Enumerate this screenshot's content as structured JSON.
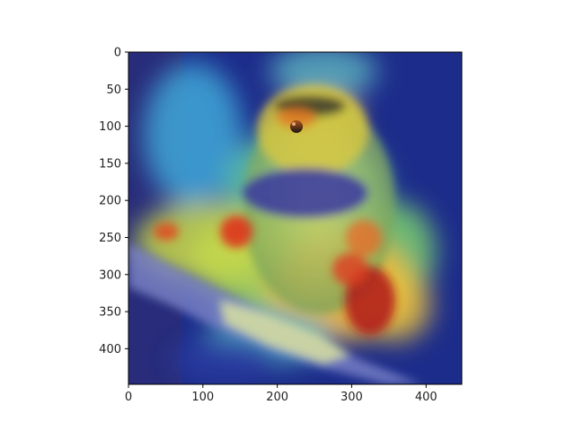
{
  "figure": {
    "subject": "small songbird perched on a branch",
    "overlay": "heatmap attention overlay",
    "palette": {
      "low": "#1a2a8a",
      "mid_low": "#3fa0d8",
      "mid": "#8ed86a",
      "mid_high": "#f2c23a",
      "high": "#d8261c",
      "axes": "#000000"
    }
  },
  "axes": {
    "xlim": [
      0,
      448
    ],
    "ylim": [
      448,
      0
    ],
    "x_ticks": [
      {
        "value": 0,
        "label": "0"
      },
      {
        "value": 100,
        "label": "100"
      },
      {
        "value": 200,
        "label": "200"
      },
      {
        "value": 300,
        "label": "300"
      },
      {
        "value": 400,
        "label": "400"
      }
    ],
    "y_ticks": [
      {
        "value": 0,
        "label": "0"
      },
      {
        "value": 50,
        "label": "50"
      },
      {
        "value": 100,
        "label": "100"
      },
      {
        "value": 150,
        "label": "150"
      },
      {
        "value": 200,
        "label": "200"
      },
      {
        "value": 250,
        "label": "250"
      },
      {
        "value": 300,
        "label": "300"
      },
      {
        "value": 350,
        "label": "350"
      },
      {
        "value": 400,
        "label": "400"
      }
    ]
  }
}
